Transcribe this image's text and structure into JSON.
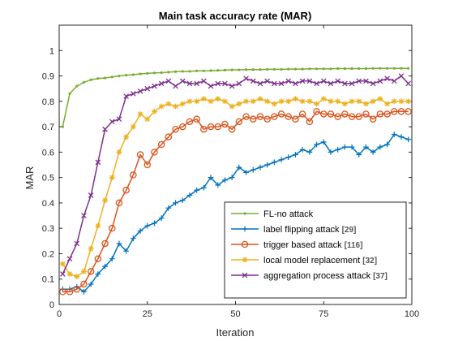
{
  "chart_data": {
    "type": "line",
    "title": "Main task accuracy rate (MAR)",
    "xlabel": "Iteration",
    "ylabel": "MAR",
    "xlim": [
      0,
      100
    ],
    "ylim": [
      0,
      1.1
    ],
    "xticks": [
      "0",
      "25",
      "50",
      "75",
      "100"
    ],
    "yticks": [
      "0",
      "0.1",
      "0.2",
      "0.3",
      "0.4",
      "0.5",
      "0.6",
      "0.7",
      "0.8",
      "0.9",
      "1"
    ],
    "grid": false,
    "legend_position": "lower-right",
    "series": [
      {
        "name": "FL-no attack",
        "ref": "",
        "color": "#77AC30",
        "marker": "dot",
        "x": [
          1,
          3,
          5,
          7,
          9,
          11,
          13,
          15,
          17,
          19,
          21,
          23,
          25,
          27,
          29,
          31,
          33,
          35,
          37,
          39,
          41,
          43,
          45,
          47,
          49,
          51,
          53,
          55,
          57,
          59,
          61,
          63,
          65,
          67,
          69,
          71,
          73,
          75,
          77,
          79,
          81,
          83,
          85,
          87,
          89,
          91,
          93,
          95,
          97,
          99
        ],
        "values": [
          0.7,
          0.83,
          0.86,
          0.875,
          0.885,
          0.89,
          0.892,
          0.896,
          0.9,
          0.903,
          0.905,
          0.908,
          0.91,
          0.912,
          0.913,
          0.915,
          0.917,
          0.918,
          0.918,
          0.92,
          0.92,
          0.921,
          0.922,
          0.923,
          0.924,
          0.924,
          0.925,
          0.925,
          0.925,
          0.926,
          0.926,
          0.926,
          0.927,
          0.927,
          0.927,
          0.928,
          0.928,
          0.928,
          0.928,
          0.929,
          0.929,
          0.929,
          0.929,
          0.929,
          0.93,
          0.93,
          0.93,
          0.93,
          0.93,
          0.93
        ]
      },
      {
        "name": "label flipping attack",
        "ref": "[29]",
        "color": "#0072BD",
        "marker": "plus",
        "x": [
          1,
          3,
          5,
          7,
          9,
          11,
          13,
          15,
          17,
          19,
          21,
          23,
          25,
          27,
          29,
          31,
          33,
          35,
          37,
          39,
          41,
          43,
          45,
          47,
          49,
          51,
          53,
          55,
          57,
          59,
          61,
          63,
          65,
          67,
          69,
          71,
          73,
          75,
          77,
          79,
          81,
          83,
          85,
          87,
          89,
          91,
          93,
          95,
          97,
          99
        ],
        "values": [
          0.06,
          0.06,
          0.07,
          0.05,
          0.08,
          0.12,
          0.15,
          0.18,
          0.24,
          0.21,
          0.26,
          0.29,
          0.31,
          0.32,
          0.34,
          0.38,
          0.4,
          0.41,
          0.43,
          0.45,
          0.46,
          0.5,
          0.47,
          0.49,
          0.5,
          0.54,
          0.52,
          0.53,
          0.54,
          0.55,
          0.56,
          0.57,
          0.58,
          0.59,
          0.61,
          0.6,
          0.63,
          0.64,
          0.6,
          0.61,
          0.62,
          0.62,
          0.59,
          0.62,
          0.6,
          0.62,
          0.63,
          0.67,
          0.66,
          0.65
        ]
      },
      {
        "name": "trigger based attack",
        "ref": "[116]",
        "color": "#D95319",
        "marker": "circle",
        "x": [
          1,
          3,
          5,
          7,
          9,
          11,
          13,
          15,
          17,
          19,
          21,
          23,
          25,
          27,
          29,
          31,
          33,
          35,
          37,
          39,
          41,
          43,
          45,
          47,
          49,
          51,
          53,
          55,
          57,
          59,
          61,
          63,
          65,
          67,
          69,
          71,
          73,
          75,
          77,
          79,
          81,
          83,
          85,
          87,
          89,
          91,
          93,
          95,
          97,
          99
        ],
        "values": [
          0.05,
          0.05,
          0.06,
          0.08,
          0.13,
          0.18,
          0.24,
          0.3,
          0.4,
          0.45,
          0.51,
          0.59,
          0.55,
          0.6,
          0.63,
          0.66,
          0.69,
          0.7,
          0.72,
          0.73,
          0.69,
          0.7,
          0.7,
          0.71,
          0.69,
          0.72,
          0.74,
          0.73,
          0.74,
          0.73,
          0.74,
          0.75,
          0.74,
          0.73,
          0.75,
          0.72,
          0.76,
          0.75,
          0.75,
          0.74,
          0.75,
          0.74,
          0.74,
          0.75,
          0.73,
          0.75,
          0.75,
          0.76,
          0.76,
          0.76
        ]
      },
      {
        "name": "local model replacement",
        "ref": "[32]",
        "color": "#EDB120",
        "marker": "asterisk",
        "x": [
          1,
          3,
          5,
          7,
          9,
          11,
          13,
          15,
          17,
          19,
          21,
          23,
          25,
          27,
          29,
          31,
          33,
          35,
          37,
          39,
          41,
          43,
          45,
          47,
          49,
          51,
          53,
          55,
          57,
          59,
          61,
          63,
          65,
          67,
          69,
          71,
          73,
          75,
          77,
          79,
          81,
          83,
          85,
          87,
          89,
          91,
          93,
          95,
          97,
          99
        ],
        "values": [
          0.16,
          0.12,
          0.11,
          0.13,
          0.22,
          0.31,
          0.41,
          0.5,
          0.6,
          0.66,
          0.7,
          0.75,
          0.73,
          0.76,
          0.78,
          0.79,
          0.78,
          0.79,
          0.8,
          0.8,
          0.81,
          0.8,
          0.81,
          0.8,
          0.78,
          0.79,
          0.8,
          0.8,
          0.81,
          0.8,
          0.79,
          0.8,
          0.8,
          0.81,
          0.8,
          0.8,
          0.79,
          0.81,
          0.8,
          0.8,
          0.79,
          0.8,
          0.8,
          0.79,
          0.8,
          0.81,
          0.79,
          0.8,
          0.8,
          0.8
        ]
      },
      {
        "name": "aggregation process attack",
        "ref": "[37]",
        "color": "#7E2F8E",
        "marker": "cross",
        "x": [
          1,
          3,
          5,
          7,
          9,
          11,
          13,
          15,
          17,
          19,
          21,
          23,
          25,
          27,
          29,
          31,
          33,
          35,
          37,
          39,
          41,
          43,
          45,
          47,
          49,
          51,
          53,
          55,
          57,
          59,
          61,
          63,
          65,
          67,
          69,
          71,
          73,
          75,
          77,
          79,
          81,
          83,
          85,
          87,
          89,
          91,
          93,
          95,
          97,
          99
        ],
        "values": [
          0.12,
          0.18,
          0.24,
          0.35,
          0.43,
          0.56,
          0.69,
          0.72,
          0.73,
          0.82,
          0.83,
          0.84,
          0.85,
          0.86,
          0.87,
          0.88,
          0.86,
          0.88,
          0.87,
          0.87,
          0.88,
          0.86,
          0.87,
          0.87,
          0.86,
          0.87,
          0.89,
          0.88,
          0.87,
          0.88,
          0.87,
          0.87,
          0.88,
          0.87,
          0.88,
          0.88,
          0.87,
          0.88,
          0.87,
          0.88,
          0.87,
          0.87,
          0.88,
          0.88,
          0.87,
          0.88,
          0.89,
          0.88,
          0.9,
          0.87
        ]
      }
    ]
  }
}
